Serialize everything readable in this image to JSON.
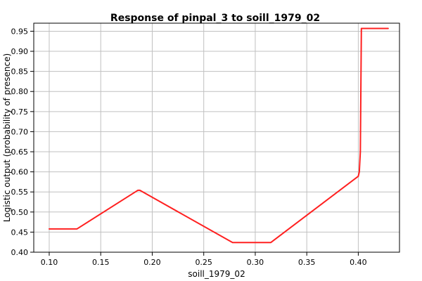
{
  "chart_data": {
    "type": "line",
    "title": "Response of pinpal_3 to soill_1979_02",
    "xlabel": "soill_1979_02",
    "ylabel": "Logistic output (probability of presence)",
    "xlim": [
      0.085,
      0.44
    ],
    "ylim": [
      0.4,
      0.97
    ],
    "x_ticks": [
      0.1,
      0.15,
      0.2,
      0.25,
      0.3,
      0.35,
      0.4
    ],
    "x_tick_labels": [
      "0.10",
      "0.15",
      "0.20",
      "0.25",
      "0.30",
      "0.35",
      "0.40"
    ],
    "y_ticks": [
      0.4,
      0.45,
      0.5,
      0.55,
      0.6,
      0.65,
      0.7,
      0.75,
      0.8,
      0.85,
      0.9,
      0.95
    ],
    "y_tick_labels": [
      "0.40",
      "0.45",
      "0.50",
      "0.55",
      "0.60",
      "0.65",
      "0.70",
      "0.75",
      "0.80",
      "0.85",
      "0.90",
      "0.95"
    ],
    "grid": true,
    "series": [
      {
        "color": "#ff2020",
        "x": [
          0.1,
          0.127,
          0.186,
          0.188,
          0.278,
          0.315,
          0.4,
          0.401,
          0.402,
          0.403,
          0.429
        ],
        "y": [
          0.458,
          0.458,
          0.554,
          0.554,
          0.424,
          0.424,
          0.589,
          0.6,
          0.65,
          0.957,
          0.957
        ]
      }
    ]
  }
}
